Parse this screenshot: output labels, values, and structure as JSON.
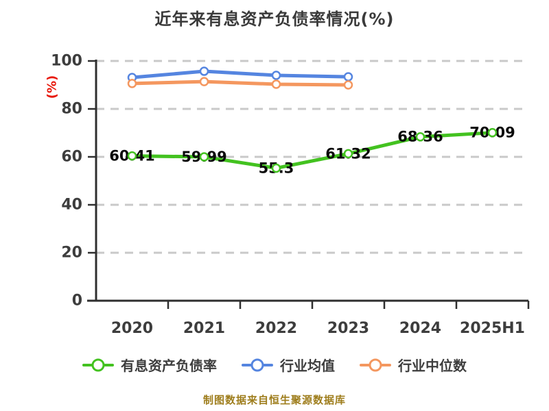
{
  "title": "近年来有息资产负债率情况(%)",
  "footer": "制图数据来自恒生聚源数据库",
  "colors": {
    "title": "#3a3a3a",
    "axis": "#2f2f2f",
    "grid": "#c9c9c9",
    "tick_label": "#3d3d3d",
    "y_axis_label": "#e8190c",
    "data_label": "#0a0a0a",
    "footer": "#9e7d1c",
    "series_main": "#43c220",
    "series_avg": "#5585e0",
    "series_median": "#f4975f"
  },
  "legend": {
    "items": [
      {
        "label": "有息资产负债率",
        "color": "#43c220"
      },
      {
        "label": "行业均值",
        "color": "#5585e0"
      },
      {
        "label": "行业中位数",
        "color": "#f4975f"
      }
    ]
  },
  "chart_data": {
    "type": "line",
    "title": "近年来有息资产负债率情况(%)",
    "xlabel": "",
    "ylabel": "(%)",
    "categories": [
      "2020",
      "2021",
      "2022",
      "2023",
      "2024",
      "2025H1"
    ],
    "series": [
      {
        "name": "有息资产负债率",
        "color": "#43c220",
        "values": [
          60.41,
          59.99,
          55.3,
          61.32,
          68.36,
          70.09
        ],
        "labels": [
          "60.41",
          "59.99",
          "55.3",
          "61.32",
          "68.36",
          "70.09"
        ]
      },
      {
        "name": "行业均值",
        "color": "#5585e0",
        "values": [
          93.1,
          95.7,
          94.0,
          93.4,
          null,
          null
        ],
        "labels": null
      },
      {
        "name": "行业中位数",
        "color": "#f4975f",
        "values": [
          90.6,
          91.4,
          90.3,
          90.0,
          null,
          null
        ],
        "labels": null
      }
    ],
    "ylim": [
      0,
      100
    ],
    "yticks": [
      0,
      20,
      40,
      60,
      80,
      100
    ],
    "grid": "horizontal-dashed",
    "legend_position": "bottom"
  }
}
